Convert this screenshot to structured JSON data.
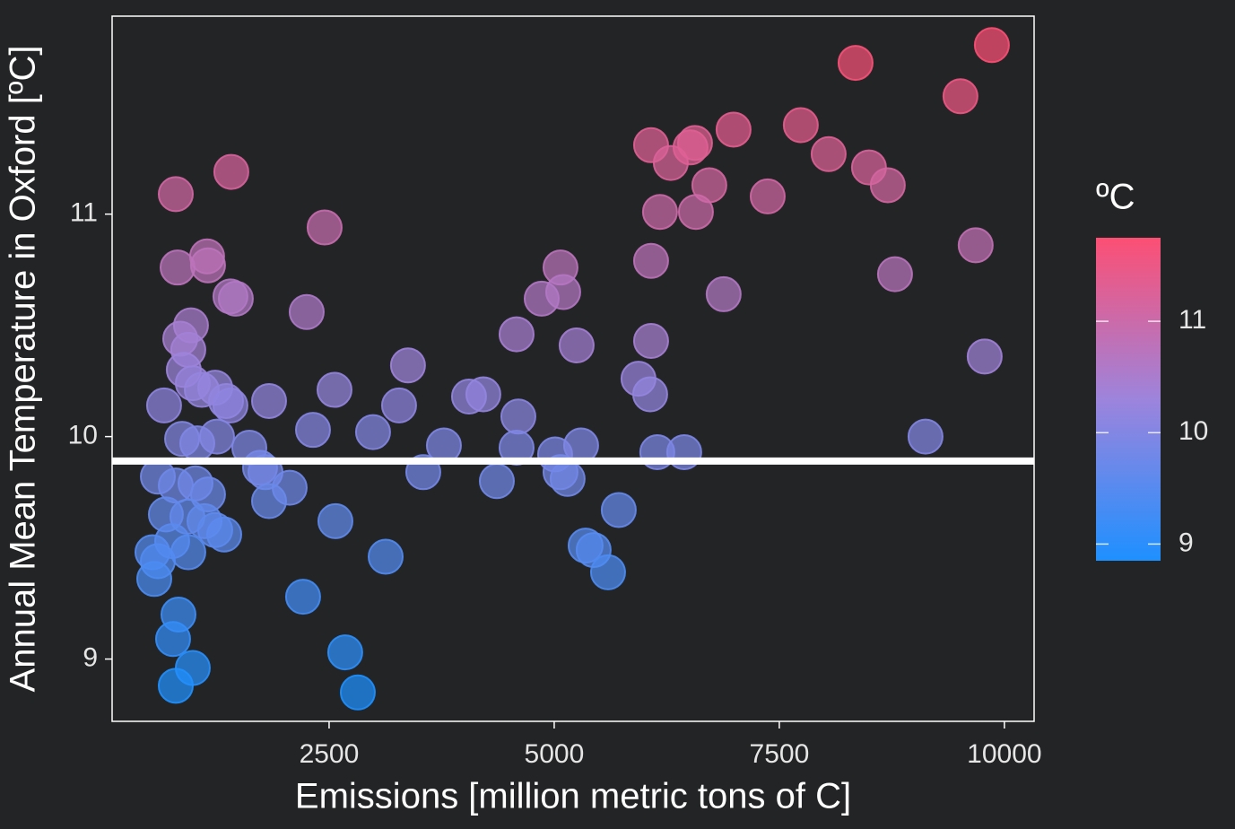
{
  "chart_data": {
    "type": "scatter",
    "xlabel": "Emissions [million metric tons of C]",
    "ylabel": "Annual Mean Temperature in Oxford [ºC]",
    "x": [
      797,
      1414,
      2450,
      8347,
      9861,
      9512,
      6076,
      6564,
      6992,
      7739,
      8048,
      6295,
      6514,
      8496,
      8705,
      6723,
      7371,
      6175,
      6574,
      9681,
      6076,
      8785,
      5070,
      5100,
      4861,
      6882,
      817,
      1145,
      1155,
      1404,
      1464,
      2251,
      4582,
      5249,
      6076,
      9781,
      3376,
      5936,
      6066,
      966,
      847,
      936,
      886,
      986,
      1086,
      1235,
      1355,
      1404,
      667,
      2560,
      1833,
      3277,
      4054,
      4213,
      4602,
      2321,
      2988,
      3775,
      4582,
      5010,
      5299,
      6145,
      6444,
      9124,
      3546,
      4363,
      5070,
      5149,
      867,
      1036,
      1255,
      1614,
      1733,
      1793,
      2062,
      1833,
      598,
      797,
      1016,
      1155,
      687,
      926,
      1116,
      1235,
      1335,
      757,
      936,
      538,
      598,
      558,
      2570,
      3128,
      5717,
      5349,
      5438,
      5598,
      2211,
      827,
      767,
      986,
      797,
      2679,
      2819
    ],
    "values": [
      11.09,
      11.19,
      10.94,
      11.68,
      11.76,
      11.53,
      11.31,
      11.32,
      11.38,
      11.4,
      11.27,
      11.23,
      11.3,
      11.21,
      11.13,
      11.13,
      11.08,
      11.01,
      11.01,
      10.86,
      10.79,
      10.73,
      10.76,
      10.65,
      10.62,
      10.64,
      10.76,
      10.81,
      10.77,
      10.63,
      10.62,
      10.56,
      10.46,
      10.41,
      10.43,
      10.36,
      10.32,
      10.26,
      10.19,
      10.5,
      10.44,
      10.39,
      10.3,
      10.24,
      10.21,
      10.22,
      10.16,
      10.14,
      10.14,
      10.21,
      10.16,
      10.14,
      10.18,
      10.19,
      10.09,
      10.03,
      10.02,
      9.96,
      9.95,
      9.92,
      9.96,
      9.93,
      9.93,
      10.0,
      9.84,
      9.8,
      9.84,
      9.81,
      9.99,
      9.97,
      10.0,
      9.95,
      9.86,
      9.84,
      9.77,
      9.71,
      9.82,
      9.78,
      9.79,
      9.74,
      9.65,
      9.64,
      9.62,
      9.58,
      9.56,
      9.53,
      9.48,
      9.48,
      9.44,
      9.36,
      9.62,
      9.46,
      9.67,
      9.51,
      9.49,
      9.39,
      9.28,
      9.2,
      9.09,
      8.96,
      8.88,
      9.03,
      8.85
    ],
    "hline": 9.89,
    "hline_color": "#ffffff",
    "xlim": [
      90,
      10330
    ],
    "ylim": [
      8.72,
      11.89
    ],
    "xticks": [
      2500,
      5000,
      7500,
      10000
    ],
    "yticks": [
      9,
      10,
      11
    ],
    "colorbar": {
      "title": "ºC",
      "lim": [
        8.85,
        11.75
      ],
      "ticks": [
        9,
        10,
        11
      ],
      "colors": [
        "#1e90ff",
        "#9d84dc",
        "#fc4f74"
      ]
    }
  }
}
